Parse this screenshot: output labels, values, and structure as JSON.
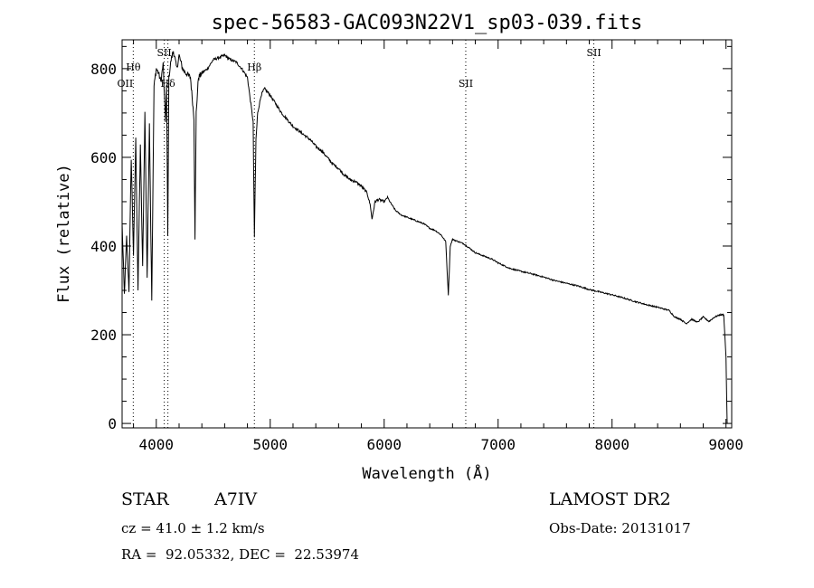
{
  "chart_data": {
    "type": "line",
    "title": "spec-56583-GAC093N22V1_sp03-039.fits",
    "xlabel": "Wavelength (Å)",
    "ylabel": "Flux (relative)",
    "xlim": [
      3700,
      9050
    ],
    "ylim": [
      -10,
      865
    ],
    "xticks": [
      4000,
      5000,
      6000,
      7000,
      8000,
      9000
    ],
    "xtick_labels": [
      "4000",
      "5000",
      "6000",
      "7000",
      "8000",
      "9000"
    ],
    "yticks": [
      0,
      200,
      400,
      600,
      800
    ],
    "ytick_labels": [
      "0",
      "200",
      "400",
      "600",
      "800"
    ],
    "grid": false,
    "line_color": "#000000",
    "series": [
      {
        "x": [
          3700,
          3720,
          3740,
          3760,
          3780,
          3800,
          3820,
          3840,
          3860,
          3880,
          3900,
          3920,
          3940,
          3960,
          3980,
          4000,
          4020,
          4040,
          4060,
          4080,
          4090,
          4101,
          4110,
          4130,
          4150,
          4180,
          4200,
          4230,
          4260,
          4300,
          4330,
          4340,
          4350,
          4370,
          4400,
          4450,
          4500,
          4550,
          4600,
          4650,
          4700,
          4750,
          4800,
          4830,
          4850,
          4861,
          4875,
          4890,
          4920,
          4950,
          5000,
          5050,
          5100,
          5150,
          5200,
          5250,
          5300,
          5350,
          5400,
          5450,
          5500,
          5550,
          5600,
          5650,
          5700,
          5750,
          5800,
          5850,
          5880,
          5893,
          5920,
          5950,
          6000,
          6030,
          6050,
          6100,
          6150,
          6200,
          6250,
          6300,
          6350,
          6400,
          6450,
          6500,
          6540,
          6563,
          6580,
          6600,
          6650,
          6700,
          6750,
          6800,
          6850,
          6900,
          6950,
          7000,
          7100,
          7200,
          7300,
          7400,
          7500,
          7600,
          7700,
          7800,
          7900,
          8000,
          8100,
          8200,
          8300,
          8400,
          8500,
          8550,
          8600,
          8650,
          8700,
          8750,
          8800,
          8850,
          8900,
          8950,
          8980,
          9000,
          9010
        ],
        "y": [
          450,
          290,
          420,
          300,
          600,
          380,
          640,
          300,
          630,
          350,
          700,
          330,
          680,
          280,
          760,
          800,
          790,
          770,
          810,
          680,
          760,
          420,
          780,
          820,
          840,
          800,
          830,
          800,
          790,
          780,
          690,
          420,
          700,
          780,
          790,
          800,
          820,
          825,
          830,
          820,
          815,
          800,
          780,
          720,
          680,
          420,
          640,
          700,
          740,
          755,
          740,
          720,
          700,
          685,
          670,
          660,
          650,
          640,
          625,
          615,
          600,
          585,
          575,
          560,
          550,
          545,
          535,
          520,
          490,
          460,
          500,
          505,
          500,
          510,
          500,
          480,
          470,
          465,
          460,
          455,
          450,
          440,
          435,
          425,
          410,
          290,
          400,
          415,
          410,
          405,
          395,
          385,
          380,
          375,
          370,
          362,
          350,
          343,
          337,
          330,
          322,
          316,
          310,
          302,
          296,
          290,
          283,
          275,
          268,
          262,
          255,
          240,
          235,
          225,
          235,
          228,
          240,
          230,
          240,
          245,
          245,
          150,
          0
        ]
      }
    ],
    "annotations": [
      {
        "text": "Hθ",
        "x": 3798,
        "level": "upper"
      },
      {
        "text": "OII",
        "x": 3727,
        "level": "lower"
      },
      {
        "text": "SII",
        "x": 4070,
        "level": "top"
      },
      {
        "text": "Hδ",
        "x": 4102,
        "level": "lower"
      },
      {
        "text": "Hβ",
        "x": 4861,
        "level": "upper"
      },
      {
        "text": "SII",
        "x": 6716,
        "level": "lower"
      },
      {
        "text": "SII",
        "x": 7840,
        "level": "top"
      }
    ],
    "dotted_lines": [
      3798,
      4070,
      4102,
      4861,
      6716,
      7840
    ]
  },
  "info": {
    "object_class": "STAR",
    "subclass": "A7IV",
    "survey": "LAMOST DR2",
    "cz": "cz = 41.0 ± 1.2 km/s",
    "obs_date": "Obs-Date: 20131017",
    "coords": "RA =  92.05332, DEC =  22.53974"
  }
}
